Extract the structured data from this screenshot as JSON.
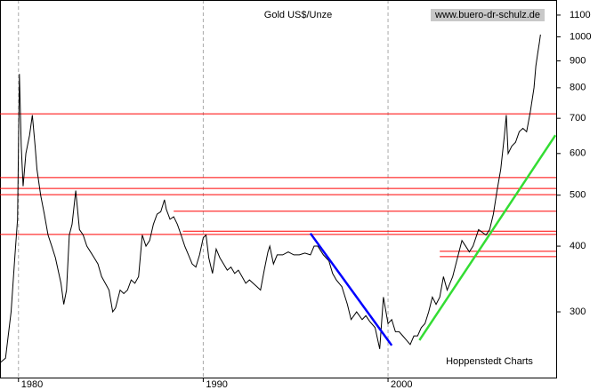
{
  "chart_data": {
    "type": "line",
    "title": "Gold US$/Unze",
    "watermark": "www.buero-dr-schulz.de",
    "source": "Hoppenstedt Charts",
    "yscale": "log",
    "xlim": [
      1979,
      2009.1
    ],
    "ylim": [
      225,
      1175
    ],
    "xticks": [
      1980,
      1990,
      2000
    ],
    "yticks": [
      300,
      400,
      500,
      600,
      700,
      800,
      900,
      1000,
      1100
    ],
    "grid": "x",
    "color": "#000000",
    "x": [
      1979.0,
      1979.3,
      1979.6,
      1979.8,
      1979.95,
      1980.05,
      1980.15,
      1980.25,
      1980.4,
      1980.6,
      1980.75,
      1980.9,
      1981.0,
      1981.2,
      1981.4,
      1981.6,
      1981.8,
      1982.0,
      1982.3,
      1982.45,
      1982.6,
      1982.75,
      1982.9,
      1983.1,
      1983.3,
      1983.5,
      1983.7,
      1983.9,
      1984.1,
      1984.3,
      1984.5,
      1984.7,
      1984.9,
      1985.1,
      1985.25,
      1985.5,
      1985.7,
      1985.9,
      1986.1,
      1986.3,
      1986.5,
      1986.7,
      1986.9,
      1987.1,
      1987.3,
      1987.5,
      1987.7,
      1987.9,
      1988.0,
      1988.2,
      1988.4,
      1988.6,
      1988.8,
      1989.0,
      1989.2,
      1989.4,
      1989.6,
      1989.8,
      1990.0,
      1990.15,
      1990.3,
      1990.5,
      1990.7,
      1990.9,
      1991.1,
      1991.3,
      1991.5,
      1991.7,
      1991.9,
      1992.1,
      1992.3,
      1992.5,
      1992.7,
      1992.9,
      1993.1,
      1993.3,
      1993.5,
      1993.6,
      1993.8,
      1994.0,
      1994.3,
      1994.6,
      1994.9,
      1995.2,
      1995.5,
      1995.8,
      1996.0,
      1996.2,
      1996.5,
      1996.8,
      1997.0,
      1997.2,
      1997.5,
      1997.8,
      1998.0,
      1998.3,
      1998.6,
      1998.8,
      1999.0,
      1999.3,
      1999.55,
      1999.75,
      2000.0,
      2000.2,
      2000.4,
      2000.6,
      2000.8,
      2001.0,
      2001.2,
      2001.4,
      2001.6,
      2001.8,
      2002.0,
      2002.2,
      2002.4,
      2002.6,
      2002.8,
      2003.0,
      2003.2,
      2003.5,
      2003.8,
      2004.0,
      2004.2,
      2004.4,
      2004.6,
      2004.9,
      2005.1,
      2005.3,
      2005.5,
      2005.7,
      2005.9,
      2006.1,
      2006.3,
      2006.4,
      2006.5,
      2006.7,
      2006.9,
      2007.1,
      2007.3,
      2007.5,
      2007.7,
      2007.9,
      2008.0,
      2008.1,
      2008.2,
      2008.25
    ],
    "values": [
      240,
      245,
      300,
      380,
      450,
      850,
      620,
      520,
      600,
      650,
      710,
      620,
      560,
      500,
      460,
      420,
      400,
      380,
      340,
      310,
      330,
      420,
      440,
      510,
      430,
      420,
      400,
      390,
      380,
      370,
      350,
      340,
      330,
      300,
      305,
      330,
      325,
      330,
      345,
      340,
      350,
      420,
      400,
      410,
      440,
      460,
      465,
      490,
      470,
      450,
      455,
      440,
      420,
      400,
      385,
      370,
      365,
      385,
      415,
      420,
      380,
      355,
      395,
      380,
      370,
      360,
      365,
      355,
      360,
      350,
      340,
      345,
      340,
      335,
      330,
      360,
      390,
      400,
      370,
      385,
      385,
      390,
      385,
      385,
      388,
      385,
      400,
      400,
      385,
      375,
      355,
      345,
      335,
      310,
      290,
      300,
      290,
      295,
      288,
      280,
      255,
      320,
      285,
      290,
      275,
      275,
      270,
      265,
      260,
      270,
      270,
      280,
      285,
      300,
      320,
      310,
      320,
      350,
      330,
      350,
      385,
      410,
      400,
      390,
      400,
      430,
      425,
      420,
      430,
      460,
      510,
      560,
      650,
      710,
      600,
      620,
      630,
      660,
      670,
      660,
      720,
      800,
      880,
      930,
      980,
      1010
    ],
    "reference_lines": {
      "color": "#ff0000",
      "lines": [
        {
          "value": 714,
          "start": 1979
        },
        {
          "value": 540,
          "start": 1979
        },
        {
          "value": 515,
          "start": 1979
        },
        {
          "value": 501,
          "start": 1979
        },
        {
          "value": 466,
          "start": 1988.4
        },
        {
          "value": 427,
          "start": 1988.9
        },
        {
          "value": 421,
          "start": 1979
        },
        {
          "value": 391,
          "start": 2002.8
        },
        {
          "value": 382,
          "start": 2002.8
        }
      ]
    },
    "trendlines": [
      {
        "color": "#0000ff",
        "x": [
          1995.8,
          2000.2
        ],
        "values": [
          423,
          259
        ]
      },
      {
        "color": "#33dd33",
        "x": [
          2001.7,
          2009.06
        ],
        "values": [
          265,
          650
        ]
      }
    ]
  }
}
